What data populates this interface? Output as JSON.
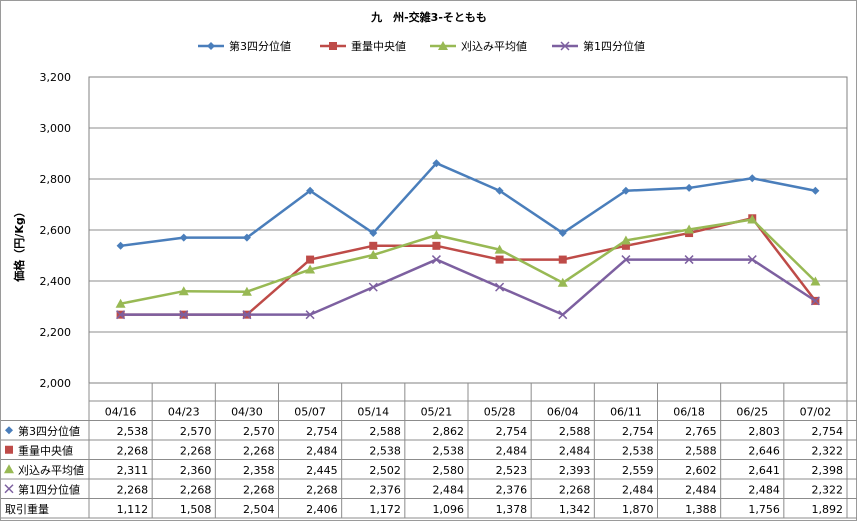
{
  "chart_data": {
    "type": "line",
    "title": "九　州-交雑3-そともも",
    "ylabel": "価格（円/Kg）",
    "xlabel": "",
    "ylim": [
      2000,
      3200
    ],
    "yticks": [
      2000,
      2200,
      2400,
      2600,
      2800,
      3000,
      3200
    ],
    "ytick_labels": [
      "2,000",
      "2,200",
      "2,400",
      "2,600",
      "2,800",
      "3,000",
      "3,200"
    ],
    "grid": true,
    "legend_position": "top",
    "categories": [
      "04/16",
      "04/23",
      "04/30",
      "05/07",
      "05/14",
      "05/21",
      "05/28",
      "06/04",
      "06/11",
      "06/18",
      "06/25",
      "07/02"
    ],
    "series": [
      {
        "name": "第3四分位値",
        "color": "#4a7ebb",
        "marker": "diamond",
        "values": [
          2538,
          2570,
          2570,
          2754,
          2588,
          2862,
          2754,
          2588,
          2754,
          2765,
          2803,
          2754
        ],
        "labels": [
          "2,538",
          "2,570",
          "2,570",
          "2,754",
          "2,588",
          "2,862",
          "2,754",
          "2,588",
          "2,754",
          "2,765",
          "2,803",
          "2,754"
        ]
      },
      {
        "name": "重量中央値",
        "color": "#be4b48",
        "marker": "square",
        "values": [
          2268,
          2268,
          2268,
          2484,
          2538,
          2538,
          2484,
          2484,
          2538,
          2588,
          2646,
          2322
        ],
        "labels": [
          "2,268",
          "2,268",
          "2,268",
          "2,484",
          "2,538",
          "2,538",
          "2,484",
          "2,484",
          "2,538",
          "2,588",
          "2,646",
          "2,322"
        ]
      },
      {
        "name": "刈込み平均値",
        "color": "#98b954",
        "marker": "triangle",
        "values": [
          2311,
          2360,
          2358,
          2445,
          2502,
          2580,
          2523,
          2393,
          2559,
          2602,
          2641,
          2398
        ],
        "labels": [
          "2,311",
          "2,360",
          "2,358",
          "2,445",
          "2,502",
          "2,580",
          "2,523",
          "2,393",
          "2,559",
          "2,602",
          "2,641",
          "2,398"
        ]
      },
      {
        "name": "第1四分位値",
        "color": "#7d60a0",
        "marker": "x",
        "values": [
          2268,
          2268,
          2268,
          2268,
          2376,
          2484,
          2376,
          2268,
          2484,
          2484,
          2484,
          2322
        ],
        "labels": [
          "2,268",
          "2,268",
          "2,268",
          "2,268",
          "2,376",
          "2,484",
          "2,376",
          "2,268",
          "2,484",
          "2,484",
          "2,484",
          "2,322"
        ]
      }
    ],
    "table_extra_row": {
      "name": "取引重量",
      "values": [
        1112,
        1508,
        2504,
        2406,
        1172,
        1096,
        1378,
        1342,
        1870,
        1388,
        1756,
        1892
      ],
      "labels": [
        "1,112",
        "1,508",
        "2,504",
        "2,406",
        "1,172",
        "1,096",
        "1,378",
        "1,342",
        "1,870",
        "1,388",
        "1,756",
        "1,892"
      ]
    }
  }
}
